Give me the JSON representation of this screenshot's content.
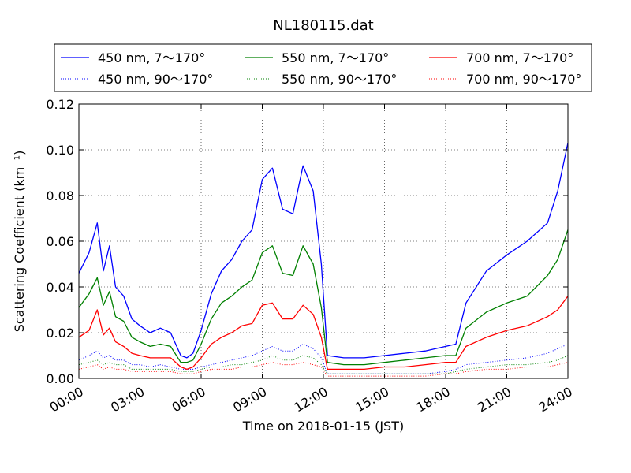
{
  "chart_data": {
    "type": "line",
    "title": "NL180115.dat",
    "xlabel": "Time on 2018-01-15 (JST)",
    "ylabel": "Scattering Coefficient (km⁻¹)",
    "xlim": [
      "00:00",
      "24:00"
    ],
    "ylim": [
      0,
      0.12
    ],
    "x_ticks": [
      "00:00",
      "03:00",
      "06:00",
      "09:00",
      "12:00",
      "15:00",
      "18:00",
      "21:00",
      "24:00"
    ],
    "y_ticks": [
      "0.00",
      "0.02",
      "0.04",
      "0.06",
      "0.08",
      "0.10",
      "0.12"
    ],
    "grid": true,
    "legend_position": "top",
    "x_hours": [
      0,
      0.5,
      0.9,
      1.2,
      1.5,
      1.8,
      2.2,
      2.6,
      3.0,
      3.5,
      4.0,
      4.5,
      5.0,
      5.3,
      5.6,
      6.0,
      6.5,
      7.0,
      7.5,
      8.0,
      8.5,
      9.0,
      9.5,
      10.0,
      10.5,
      11.0,
      11.5,
      11.9,
      12.2,
      13.0,
      14.0,
      15.0,
      16.0,
      17.0,
      18.0,
      18.5,
      19.0,
      20.0,
      21.0,
      22.0,
      23.0,
      23.5,
      24.0
    ],
    "series": [
      {
        "name": "450 nm, 7～170°",
        "color": "#0000ff",
        "dash": "solid",
        "values": [
          0.046,
          0.055,
          0.068,
          0.047,
          0.058,
          0.04,
          0.036,
          0.026,
          0.023,
          0.02,
          0.022,
          0.02,
          0.01,
          0.009,
          0.011,
          0.021,
          0.037,
          0.047,
          0.052,
          0.06,
          0.065,
          0.087,
          0.092,
          0.074,
          0.072,
          0.093,
          0.082,
          0.05,
          0.01,
          0.009,
          0.009,
          0.01,
          0.011,
          0.012,
          0.014,
          0.015,
          0.033,
          0.047,
          0.054,
          0.06,
          0.068,
          0.082,
          0.103
        ]
      },
      {
        "name": "450 nm, 90～170°",
        "color": "#0000ff",
        "dash": "dotted",
        "values": [
          0.008,
          0.01,
          0.012,
          0.009,
          0.01,
          0.008,
          0.008,
          0.006,
          0.006,
          0.005,
          0.006,
          0.005,
          0.004,
          0.004,
          0.004,
          0.005,
          0.006,
          0.007,
          0.008,
          0.009,
          0.01,
          0.012,
          0.014,
          0.012,
          0.012,
          0.015,
          0.013,
          0.009,
          0.002,
          0.002,
          0.002,
          0.002,
          0.002,
          0.002,
          0.003,
          0.004,
          0.006,
          0.007,
          0.008,
          0.009,
          0.011,
          0.013,
          0.015
        ]
      },
      {
        "name": "550 nm, 7～170°",
        "color": "#008000",
        "dash": "solid",
        "values": [
          0.031,
          0.037,
          0.044,
          0.032,
          0.038,
          0.027,
          0.025,
          0.018,
          0.016,
          0.014,
          0.015,
          0.014,
          0.007,
          0.007,
          0.008,
          0.015,
          0.026,
          0.033,
          0.036,
          0.04,
          0.043,
          0.055,
          0.058,
          0.046,
          0.045,
          0.058,
          0.05,
          0.031,
          0.007,
          0.006,
          0.006,
          0.007,
          0.008,
          0.009,
          0.01,
          0.01,
          0.022,
          0.029,
          0.033,
          0.036,
          0.045,
          0.052,
          0.065
        ]
      },
      {
        "name": "550 nm, 90～170°",
        "color": "#008000",
        "dash": "dotted",
        "values": [
          0.006,
          0.007,
          0.008,
          0.006,
          0.007,
          0.006,
          0.006,
          0.004,
          0.004,
          0.004,
          0.004,
          0.004,
          0.003,
          0.003,
          0.003,
          0.004,
          0.005,
          0.005,
          0.006,
          0.006,
          0.007,
          0.008,
          0.01,
          0.008,
          0.008,
          0.01,
          0.009,
          0.006,
          0.002,
          0.002,
          0.002,
          0.002,
          0.002,
          0.002,
          0.002,
          0.003,
          0.004,
          0.005,
          0.006,
          0.006,
          0.007,
          0.008,
          0.01
        ]
      },
      {
        "name": "700 nm, 7～170°",
        "color": "#ff0000",
        "dash": "solid",
        "values": [
          0.018,
          0.021,
          0.03,
          0.019,
          0.022,
          0.016,
          0.014,
          0.011,
          0.01,
          0.009,
          0.009,
          0.009,
          0.005,
          0.004,
          0.005,
          0.009,
          0.015,
          0.018,
          0.02,
          0.023,
          0.024,
          0.032,
          0.033,
          0.026,
          0.026,
          0.032,
          0.028,
          0.018,
          0.004,
          0.004,
          0.004,
          0.005,
          0.005,
          0.006,
          0.007,
          0.007,
          0.014,
          0.018,
          0.021,
          0.023,
          0.027,
          0.03,
          0.036
        ]
      },
      {
        "name": "700 nm, 90～170°",
        "color": "#ff0000",
        "dash": "dotted",
        "values": [
          0.004,
          0.005,
          0.006,
          0.004,
          0.005,
          0.004,
          0.004,
          0.003,
          0.003,
          0.003,
          0.003,
          0.003,
          0.002,
          0.002,
          0.002,
          0.003,
          0.004,
          0.004,
          0.004,
          0.005,
          0.005,
          0.006,
          0.007,
          0.006,
          0.006,
          0.007,
          0.006,
          0.005,
          0.001,
          0.001,
          0.001,
          0.001,
          0.001,
          0.001,
          0.002,
          0.002,
          0.003,
          0.004,
          0.004,
          0.005,
          0.005,
          0.006,
          0.007
        ]
      }
    ]
  }
}
